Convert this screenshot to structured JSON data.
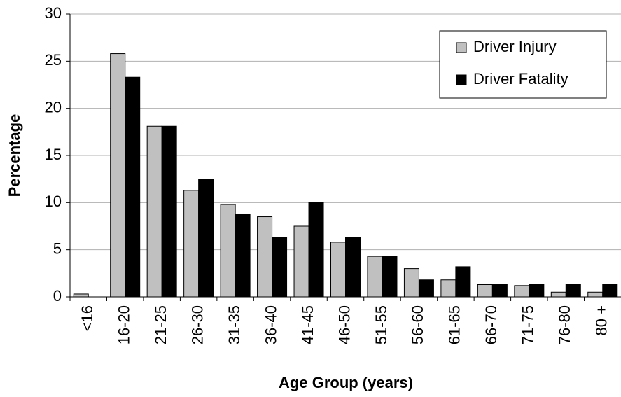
{
  "chart_data": {
    "type": "bar",
    "x_label": "Age Group (years)",
    "y_label": "Percentage",
    "categories": [
      "<16",
      "16-20",
      "21-25",
      "26-30",
      "31-35",
      "36-40",
      "41-45",
      "46-50",
      "51-55",
      "56-60",
      "61-65",
      "66-70",
      "71-75",
      "76-80",
      "80 +"
    ],
    "series": [
      {
        "name": "Driver Injury",
        "color": "#c0c0c0",
        "values": [
          0.3,
          25.8,
          18.1,
          11.3,
          9.8,
          8.5,
          7.5,
          5.8,
          4.3,
          3.0,
          1.8,
          1.3,
          1.2,
          0.5,
          0.5
        ]
      },
      {
        "name": "Driver Fatality",
        "color": "#000000",
        "values": [
          0,
          23.3,
          18.1,
          12.5,
          8.8,
          6.3,
          10.0,
          6.3,
          4.3,
          1.8,
          3.2,
          1.3,
          1.3,
          1.3,
          1.3
        ]
      }
    ],
    "ylim": [
      0,
      30
    ],
    "yticks": [
      0,
      5,
      10,
      15,
      20,
      25,
      30
    ],
    "grid": true,
    "legend": "top-right"
  }
}
